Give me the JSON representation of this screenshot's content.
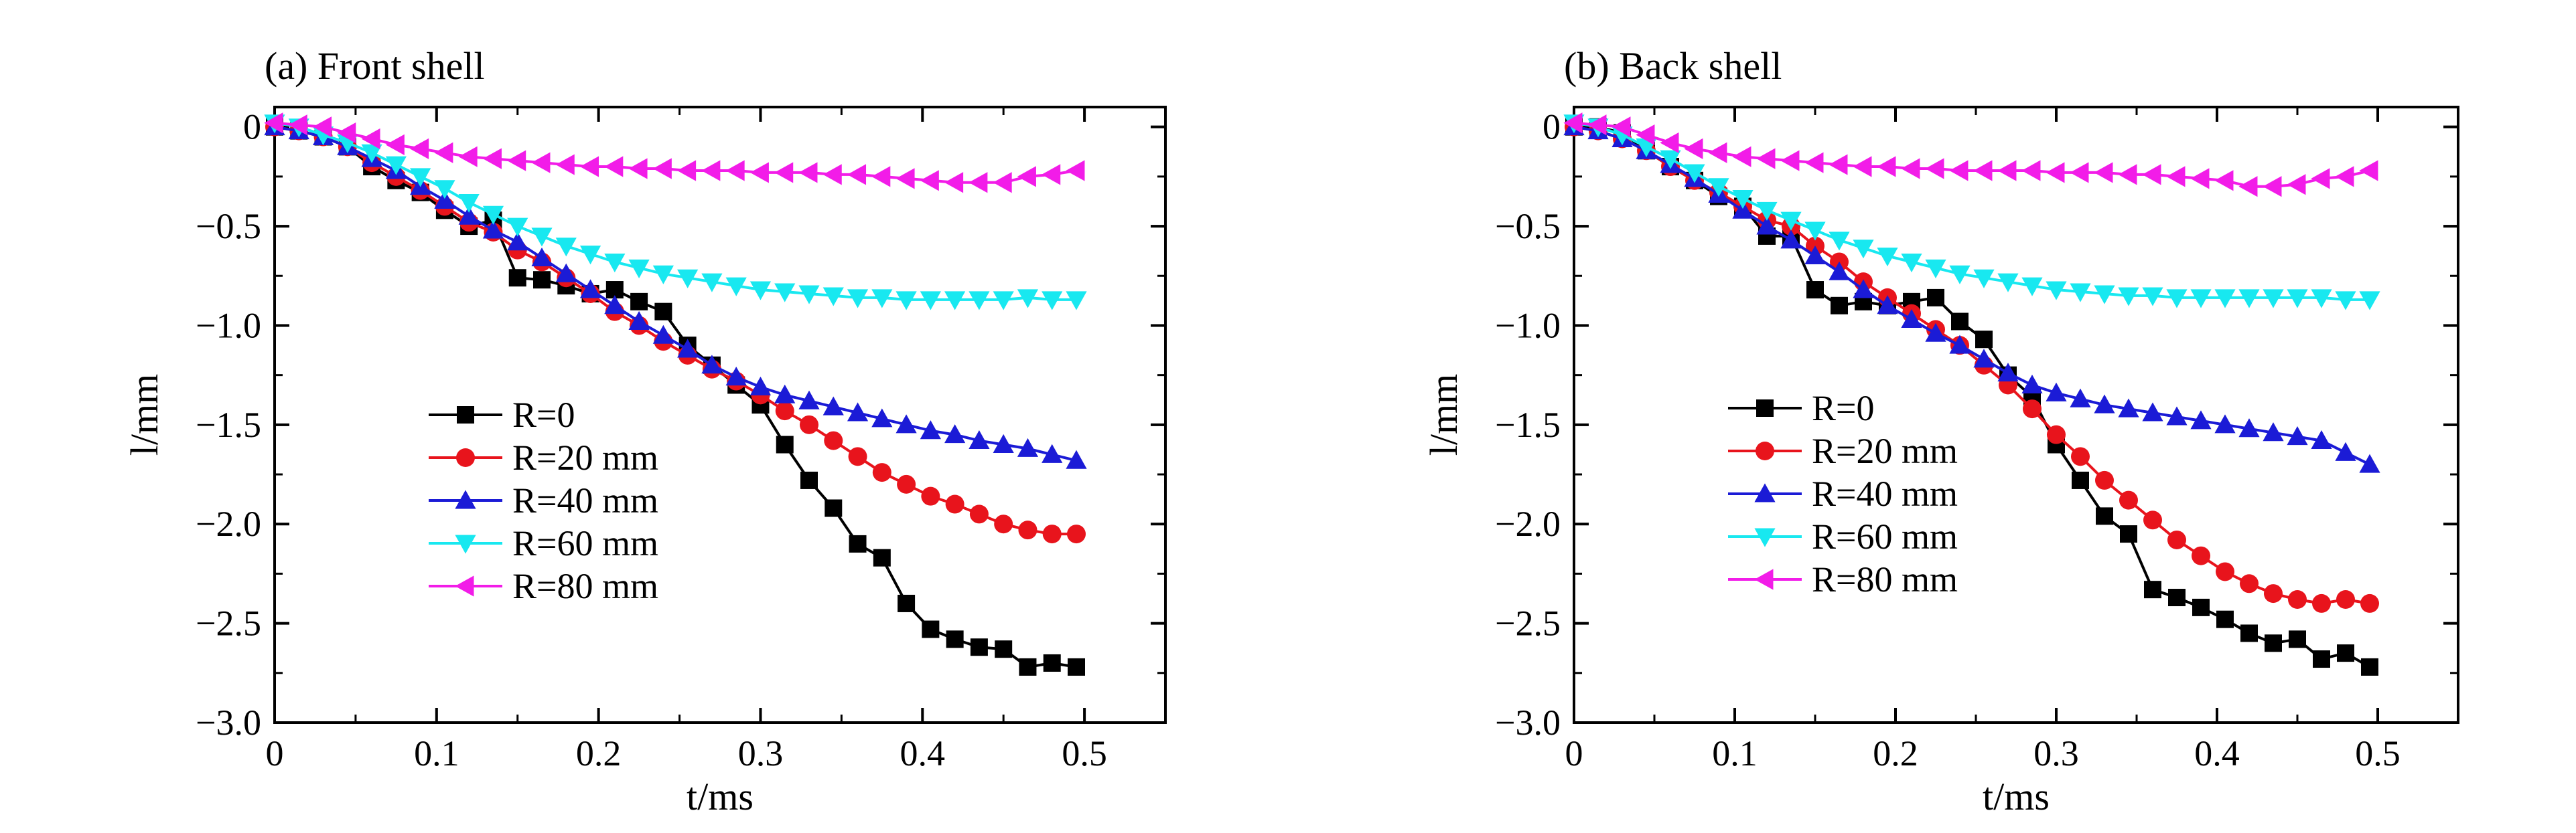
{
  "chart_data": [
    {
      "type": "line",
      "title": "(a) Front shell",
      "xlabel": "t/ms",
      "ylabel": "l/mm",
      "xlim": [
        0,
        0.55
      ],
      "ylim": [
        -3.0,
        0.1
      ],
      "xticks": [
        0,
        0.1,
        0.2,
        0.3,
        0.4,
        0.5
      ],
      "xtick_labels": [
        "0",
        "0.1",
        "0.2",
        "0.3",
        "0.4",
        "0.5"
      ],
      "yticks": [
        0,
        -0.5,
        -1.0,
        -1.5,
        -2.0,
        -2.5,
        -3.0
      ],
      "ytick_labels": [
        "0",
        "−0.5",
        "−1.0",
        "−1.5",
        "−2.0",
        "−2.5",
        "−3.0"
      ],
      "grid": false,
      "legend_position": "lower-left",
      "series": [
        {
          "name": "R=0",
          "color": "#000000",
          "marker": "square",
          "x": [
            0,
            0.015,
            0.03,
            0.045,
            0.06,
            0.075,
            0.09,
            0.105,
            0.12,
            0.135,
            0.15,
            0.165,
            0.18,
            0.195,
            0.21,
            0.225,
            0.24,
            0.255,
            0.27,
            0.285,
            0.3,
            0.315,
            0.33,
            0.345,
            0.36,
            0.375,
            0.39,
            0.405,
            0.42,
            0.435,
            0.45,
            0.465,
            0.48,
            0.495
          ],
          "y": [
            0,
            -0.02,
            -0.05,
            -0.1,
            -0.2,
            -0.27,
            -0.33,
            -0.42,
            -0.5,
            -0.47,
            -0.76,
            -0.77,
            -0.8,
            -0.84,
            -0.82,
            -0.88,
            -0.93,
            -1.1,
            -1.2,
            -1.3,
            -1.4,
            -1.6,
            -1.78,
            -1.92,
            -2.1,
            -2.17,
            -2.4,
            -2.53,
            -2.58,
            -2.62,
            -2.63,
            -2.72,
            -2.7,
            -2.72
          ]
        },
        {
          "name": "R=20 mm",
          "color": "#e8141c",
          "marker": "circle",
          "x": [
            0,
            0.015,
            0.03,
            0.045,
            0.06,
            0.075,
            0.09,
            0.105,
            0.12,
            0.135,
            0.15,
            0.165,
            0.18,
            0.195,
            0.21,
            0.225,
            0.24,
            0.255,
            0.27,
            0.285,
            0.3,
            0.315,
            0.33,
            0.345,
            0.36,
            0.375,
            0.39,
            0.405,
            0.42,
            0.435,
            0.45,
            0.465,
            0.48,
            0.495
          ],
          "y": [
            0,
            -0.02,
            -0.05,
            -0.1,
            -0.18,
            -0.25,
            -0.32,
            -0.4,
            -0.48,
            -0.53,
            -0.62,
            -0.68,
            -0.76,
            -0.84,
            -0.93,
            -1.0,
            -1.08,
            -1.15,
            -1.22,
            -1.28,
            -1.35,
            -1.43,
            -1.5,
            -1.58,
            -1.66,
            -1.74,
            -1.8,
            -1.86,
            -1.9,
            -1.95,
            -2.0,
            -2.03,
            -2.05,
            -2.05
          ]
        },
        {
          "name": "R=40 mm",
          "color": "#1b1bd6",
          "marker": "triangle-up",
          "x": [
            0,
            0.015,
            0.03,
            0.045,
            0.06,
            0.075,
            0.09,
            0.105,
            0.12,
            0.135,
            0.15,
            0.165,
            0.18,
            0.195,
            0.21,
            0.225,
            0.24,
            0.255,
            0.27,
            0.285,
            0.3,
            0.315,
            0.33,
            0.345,
            0.36,
            0.375,
            0.39,
            0.405,
            0.42,
            0.435,
            0.45,
            0.465,
            0.48,
            0.495
          ],
          "y": [
            0,
            -0.02,
            -0.05,
            -0.1,
            -0.16,
            -0.22,
            -0.3,
            -0.37,
            -0.45,
            -0.52,
            -0.58,
            -0.66,
            -0.74,
            -0.82,
            -0.9,
            -0.98,
            -1.05,
            -1.12,
            -1.2,
            -1.26,
            -1.31,
            -1.35,
            -1.38,
            -1.41,
            -1.44,
            -1.47,
            -1.5,
            -1.53,
            -1.55,
            -1.58,
            -1.6,
            -1.62,
            -1.65,
            -1.68
          ]
        },
        {
          "name": "R=60 mm",
          "color": "#18e8f0",
          "marker": "triangle-down",
          "x": [
            0,
            0.015,
            0.03,
            0.045,
            0.06,
            0.075,
            0.09,
            0.105,
            0.12,
            0.135,
            0.15,
            0.165,
            0.18,
            0.195,
            0.21,
            0.225,
            0.24,
            0.255,
            0.27,
            0.285,
            0.3,
            0.315,
            0.33,
            0.345,
            0.36,
            0.375,
            0.39,
            0.405,
            0.42,
            0.435,
            0.45,
            0.465,
            0.48,
            0.495
          ],
          "y": [
            0.02,
            0,
            -0.04,
            -0.08,
            -0.13,
            -0.19,
            -0.25,
            -0.31,
            -0.38,
            -0.44,
            -0.5,
            -0.55,
            -0.6,
            -0.64,
            -0.68,
            -0.71,
            -0.74,
            -0.76,
            -0.78,
            -0.8,
            -0.82,
            -0.83,
            -0.84,
            -0.85,
            -0.86,
            -0.86,
            -0.87,
            -0.87,
            -0.87,
            -0.87,
            -0.87,
            -0.86,
            -0.87,
            -0.87
          ]
        },
        {
          "name": "R=80 mm",
          "color": "#f21ce8",
          "marker": "triangle-left",
          "x": [
            0,
            0.015,
            0.03,
            0.045,
            0.06,
            0.075,
            0.09,
            0.105,
            0.12,
            0.135,
            0.15,
            0.165,
            0.18,
            0.195,
            0.21,
            0.225,
            0.24,
            0.255,
            0.27,
            0.285,
            0.3,
            0.315,
            0.33,
            0.345,
            0.36,
            0.375,
            0.39,
            0.405,
            0.42,
            0.435,
            0.45,
            0.465,
            0.48,
            0.495
          ],
          "y": [
            0.02,
            0.01,
            0,
            -0.03,
            -0.06,
            -0.09,
            -0.11,
            -0.13,
            -0.15,
            -0.16,
            -0.17,
            -0.18,
            -0.19,
            -0.2,
            -0.2,
            -0.21,
            -0.21,
            -0.22,
            -0.22,
            -0.22,
            -0.23,
            -0.23,
            -0.23,
            -0.24,
            -0.24,
            -0.25,
            -0.26,
            -0.27,
            -0.28,
            -0.28,
            -0.28,
            -0.25,
            -0.24,
            -0.22
          ]
        }
      ]
    },
    {
      "type": "line",
      "title": "(b) Back shell",
      "xlabel": "t/ms",
      "ylabel": "l/mm",
      "xlim": [
        0,
        0.55
      ],
      "ylim": [
        -3.0,
        0.1
      ],
      "xticks": [
        0,
        0.1,
        0.2,
        0.3,
        0.4,
        0.5
      ],
      "xtick_labels": [
        "0",
        "0.1",
        "0.2",
        "0.3",
        "0.4",
        "0.5"
      ],
      "yticks": [
        0,
        -0.5,
        -1.0,
        -1.5,
        -2.0,
        -2.5,
        -3.0
      ],
      "ytick_labels": [
        "0",
        "−0.5",
        "−1.0",
        "−1.5",
        "−2.0",
        "−2.5",
        "−3.0"
      ],
      "grid": false,
      "legend_position": "center-left",
      "series": [
        {
          "name": "R=0",
          "color": "#000000",
          "marker": "square",
          "x": [
            0,
            0.015,
            0.03,
            0.045,
            0.06,
            0.075,
            0.09,
            0.105,
            0.12,
            0.135,
            0.15,
            0.165,
            0.18,
            0.195,
            0.21,
            0.225,
            0.24,
            0.255,
            0.27,
            0.285,
            0.3,
            0.315,
            0.33,
            0.345,
            0.36,
            0.375,
            0.39,
            0.405,
            0.42,
            0.435,
            0.45,
            0.465,
            0.48,
            0.495
          ],
          "y": [
            0,
            0,
            -0.03,
            -0.12,
            -0.2,
            -0.27,
            -0.35,
            -0.4,
            -0.55,
            -0.55,
            -0.82,
            -0.9,
            -0.88,
            -0.9,
            -0.88,
            -0.86,
            -0.98,
            -1.07,
            -1.25,
            -1.36,
            -1.6,
            -1.78,
            -1.96,
            -2.05,
            -2.33,
            -2.37,
            -2.42,
            -2.48,
            -2.55,
            -2.6,
            -2.58,
            -2.68,
            -2.65,
            -2.72
          ]
        },
        {
          "name": "R=20 mm",
          "color": "#e8141c",
          "marker": "circle",
          "x": [
            0,
            0.015,
            0.03,
            0.045,
            0.06,
            0.075,
            0.09,
            0.105,
            0.12,
            0.135,
            0.15,
            0.165,
            0.18,
            0.195,
            0.21,
            0.225,
            0.24,
            0.255,
            0.27,
            0.285,
            0.3,
            0.315,
            0.33,
            0.345,
            0.36,
            0.375,
            0.39,
            0.405,
            0.42,
            0.435,
            0.45,
            0.465,
            0.48,
            0.495
          ],
          "y": [
            0,
            -0.02,
            -0.06,
            -0.12,
            -0.2,
            -0.27,
            -0.33,
            -0.4,
            -0.47,
            -0.5,
            -0.6,
            -0.68,
            -0.78,
            -0.86,
            -0.94,
            -1.02,
            -1.1,
            -1.2,
            -1.3,
            -1.42,
            -1.55,
            -1.66,
            -1.78,
            -1.88,
            -1.98,
            -2.08,
            -2.16,
            -2.24,
            -2.3,
            -2.35,
            -2.38,
            -2.4,
            -2.38,
            -2.4
          ]
        },
        {
          "name": "R=40 mm",
          "color": "#1b1bd6",
          "marker": "triangle-up",
          "x": [
            0,
            0.015,
            0.03,
            0.045,
            0.06,
            0.075,
            0.09,
            0.105,
            0.12,
            0.135,
            0.15,
            0.165,
            0.18,
            0.195,
            0.21,
            0.225,
            0.24,
            0.255,
            0.27,
            0.285,
            0.3,
            0.315,
            0.33,
            0.345,
            0.36,
            0.375,
            0.39,
            0.405,
            0.42,
            0.435,
            0.45,
            0.465,
            0.48,
            0.495
          ],
          "y": [
            0,
            -0.02,
            -0.06,
            -0.12,
            -0.19,
            -0.26,
            -0.34,
            -0.42,
            -0.5,
            -0.57,
            -0.65,
            -0.73,
            -0.82,
            -0.9,
            -0.97,
            -1.04,
            -1.1,
            -1.17,
            -1.24,
            -1.3,
            -1.34,
            -1.37,
            -1.4,
            -1.42,
            -1.44,
            -1.46,
            -1.48,
            -1.5,
            -1.52,
            -1.54,
            -1.56,
            -1.58,
            -1.64,
            -1.7
          ]
        },
        {
          "name": "R=60 mm",
          "color": "#18e8f0",
          "marker": "triangle-down",
          "x": [
            0,
            0.015,
            0.03,
            0.045,
            0.06,
            0.075,
            0.09,
            0.105,
            0.12,
            0.135,
            0.15,
            0.165,
            0.18,
            0.195,
            0.21,
            0.225,
            0.24,
            0.255,
            0.27,
            0.285,
            0.3,
            0.315,
            0.33,
            0.345,
            0.36,
            0.375,
            0.39,
            0.405,
            0.42,
            0.435,
            0.45,
            0.465,
            0.48,
            0.495
          ],
          "y": [
            0.02,
            0,
            -0.04,
            -0.1,
            -0.16,
            -0.23,
            -0.3,
            -0.36,
            -0.42,
            -0.47,
            -0.52,
            -0.57,
            -0.61,
            -0.65,
            -0.68,
            -0.71,
            -0.74,
            -0.76,
            -0.78,
            -0.8,
            -0.82,
            -0.83,
            -0.84,
            -0.85,
            -0.85,
            -0.86,
            -0.86,
            -0.86,
            -0.86,
            -0.86,
            -0.86,
            -0.86,
            -0.87,
            -0.87
          ]
        },
        {
          "name": "R=80 mm",
          "color": "#f21ce8",
          "marker": "triangle-left",
          "x": [
            0,
            0.015,
            0.03,
            0.045,
            0.06,
            0.075,
            0.09,
            0.105,
            0.12,
            0.135,
            0.15,
            0.165,
            0.18,
            0.195,
            0.21,
            0.225,
            0.24,
            0.255,
            0.27,
            0.285,
            0.3,
            0.315,
            0.33,
            0.345,
            0.36,
            0.375,
            0.39,
            0.405,
            0.42,
            0.435,
            0.45,
            0.465,
            0.48,
            0.495
          ],
          "y": [
            0.02,
            0.01,
            0,
            -0.04,
            -0.08,
            -0.11,
            -0.13,
            -0.15,
            -0.16,
            -0.17,
            -0.18,
            -0.19,
            -0.2,
            -0.2,
            -0.21,
            -0.21,
            -0.22,
            -0.22,
            -0.22,
            -0.22,
            -0.23,
            -0.23,
            -0.23,
            -0.24,
            -0.24,
            -0.25,
            -0.26,
            -0.27,
            -0.3,
            -0.3,
            -0.29,
            -0.26,
            -0.25,
            -0.22
          ]
        }
      ]
    }
  ]
}
